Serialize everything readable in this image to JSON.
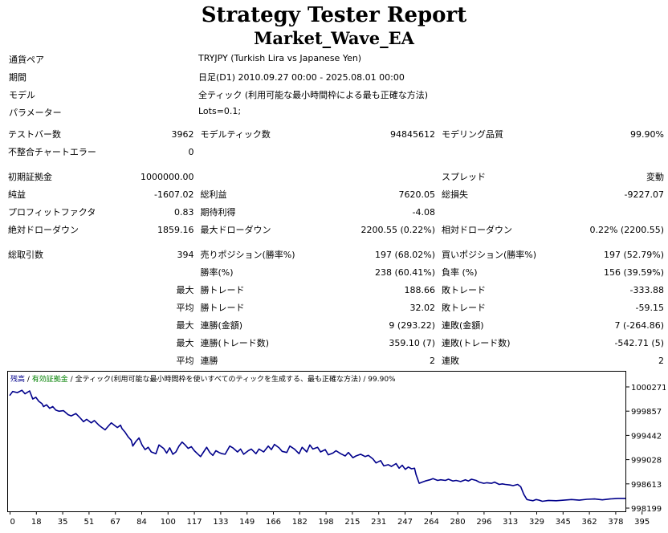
{
  "report": {
    "title": "Strategy Tester Report",
    "ea_name": "Market_Wave_EA"
  },
  "info": {
    "symbol_label": "通貨ペア",
    "symbol_value": "TRYJPY (Turkish Lira vs Japanese Yen)",
    "period_label": "期間",
    "period_value": "日足(D1) 2010.09.27 00:00 - 2025.08.01 00:00",
    "model_label": "モデル",
    "model_value": "全ティック (利用可能な最小時間枠による最も正確な方法)",
    "params_label": "パラメーター",
    "params_value": "Lots=0.1;"
  },
  "stats": {
    "bars_label": "テストバー数",
    "bars_value": "3962",
    "ticks_label": "モデルティック数",
    "ticks_value": "94845612",
    "quality_label": "モデリング品質",
    "quality_value": "99.90%",
    "mismatch_label": "不整合チャートエラー",
    "mismatch_value": "0",
    "deposit_label": "初期証拠金",
    "deposit_value": "1000000.00",
    "spread_label": "スプレッド",
    "spread_value": "変動",
    "net_label": "純益",
    "net_value": "-1607.02",
    "gross_profit_label": "総利益",
    "gross_profit_value": "7620.05",
    "gross_loss_label": "総損失",
    "gross_loss_value": "-9227.07",
    "pf_label": "プロフィットファクタ",
    "pf_value": "0.83",
    "payoff_label": "期待利得",
    "payoff_value": "-4.08",
    "abs_dd_label": "絶対ドローダウン",
    "abs_dd_value": "1859.16",
    "max_dd_label": "最大ドローダウン",
    "max_dd_value": "2200.55 (0.22%)",
    "rel_dd_label": "相対ドローダウン",
    "rel_dd_value": "0.22% (2200.55)",
    "trades_label": "総取引数",
    "trades_value": "394",
    "short_label": "売りポジション(勝率%)",
    "short_value": "197 (68.02%)",
    "long_label": "買いポジション(勝率%)",
    "long_value": "197 (52.79%)",
    "win_pct_label": "勝率(%)",
    "win_pct_value": "238 (60.41%)",
    "loss_pct_label": "負率 (%)",
    "loss_pct_value": "156 (39.59%)",
    "largest_prefix": "最大",
    "largest_win_label": "勝トレード",
    "largest_win_value": "188.66",
    "largest_loss_label": "敗トレード",
    "largest_loss_value": "-333.88",
    "avg_prefix": "平均",
    "avg_win_label": "勝トレード",
    "avg_win_value": "32.02",
    "avg_loss_label": "敗トレード",
    "avg_loss_value": "-59.15",
    "max_prefix1": "最大",
    "max_cons_wins_label": "連勝(金額)",
    "max_cons_wins_value": "9 (293.22)",
    "max_cons_losses_label": "連敗(金額)",
    "max_cons_losses_value": "7 (-264.86)",
    "max_prefix2": "最大",
    "max_cons_profit_label": "連勝(トレード数)",
    "max_cons_profit_value": "359.10 (7)",
    "max_cons_loss_label": "連敗(トレード数)",
    "max_cons_loss_value": "-542.71 (5)",
    "avg_prefix2": "平均",
    "avg_cons_wins_label": "連勝",
    "avg_cons_wins_value": "2",
    "avg_cons_losses_label": "連敗",
    "avg_cons_losses_value": "2"
  },
  "chart_data": {
    "type": "line",
    "legend": {
      "balance": "残高",
      "sep1": " / ",
      "equity": "有効証拠金",
      "sep2": " / ",
      "model": "全ティック(利用可能な最小時間枠を使いすべてのティックを生成する、最も正確な方法)",
      "sep3": " / ",
      "quality": "99.90%"
    },
    "x_ticks": [
      "0",
      "18",
      "35",
      "51",
      "67",
      "84",
      "100",
      "117",
      "133",
      "149",
      "166",
      "182",
      "198",
      "215",
      "231",
      "247",
      "264",
      "280",
      "296",
      "313",
      "329",
      "345",
      "362",
      "378",
      "395"
    ],
    "y_ticks": [
      "1000271",
      "999857",
      "999442",
      "999028",
      "998613",
      "998199"
    ],
    "ylim": [
      998199,
      1000271
    ],
    "xlim": [
      0,
      400
    ],
    "colors": {
      "balance": "#00008b",
      "equity": "#008000",
      "axis": "#000000"
    },
    "series": [
      {
        "x": [
          0,
          2,
          5,
          8,
          10,
          13,
          15,
          17,
          19,
          21,
          22,
          24,
          26,
          28,
          30,
          32,
          35,
          38,
          40,
          43,
          46,
          48,
          50,
          53,
          55,
          58,
          60,
          62,
          64,
          66,
          68,
          70,
          72,
          73,
          75,
          77,
          79,
          80,
          82,
          84,
          86,
          88,
          90,
          92,
          95,
          97,
          100,
          102,
          104,
          106,
          108,
          110,
          112,
          114,
          116,
          118,
          120,
          122,
          124,
          126,
          128,
          130,
          132,
          134,
          136,
          138,
          140,
          143,
          145,
          148,
          150,
          152,
          155,
          157,
          160,
          162,
          165,
          168,
          170,
          172,
          175,
          177,
          180,
          182,
          185,
          188,
          190,
          193,
          195,
          197,
          200,
          202,
          205,
          207,
          210,
          212,
          215,
          218,
          220,
          223,
          225,
          228,
          231,
          233,
          236,
          238,
          241,
          243,
          246,
          248,
          251,
          253,
          255,
          257,
          259,
          261,
          263,
          264,
          266,
          268,
          270,
          273,
          275,
          278,
          280,
          283,
          285,
          288,
          290,
          293,
          296,
          298,
          300,
          303,
          305,
          308,
          310,
          313,
          315,
          318,
          320,
          322,
          325,
          327,
          330,
          332,
          334,
          336,
          338,
          340,
          342,
          344,
          346,
          350,
          355,
          360,
          365,
          370,
          375,
          380,
          385,
          390,
          395,
          400
        ],
        "y": [
          1000150,
          1000220,
          1000200,
          1000240,
          1000180,
          1000230,
          1000090,
          1000120,
          1000050,
          1000010,
          999960,
          999990,
          999930,
          999960,
          999900,
          999880,
          999890,
          999820,
          999800,
          999840,
          999760,
          999700,
          999740,
          999680,
          999720,
          999640,
          999600,
          999560,
          999620,
          999680,
          999640,
          999600,
          999640,
          999580,
          999520,
          999440,
          999380,
          999280,
          999360,
          999420,
          999300,
          999220,
          999260,
          999180,
          999150,
          999300,
          999240,
          999160,
          999250,
          999140,
          999180,
          999280,
          999350,
          999300,
          999240,
          999270,
          999200,
          999150,
          999100,
          999180,
          999260,
          999170,
          999120,
          999200,
          999170,
          999150,
          999140,
          999280,
          999250,
          999180,
          999230,
          999140,
          999200,
          999230,
          999150,
          999230,
          999180,
          999280,
          999220,
          999310,
          999250,
          999190,
          999170,
          999280,
          999230,
          999150,
          999260,
          999180,
          999300,
          999230,
          999260,
          999180,
          999220,
          999130,
          999160,
          999200,
          999150,
          999110,
          999170,
          999080,
          999110,
          999140,
          999100,
          999120,
          999060,
          998990,
          999030,
          998940,
          998960,
          998930,
          998980,
          998900,
          998950,
          998880,
          998920,
          998890,
          998900,
          998790,
          998640,
          998660,
          998680,
          998700,
          998720,
          998690,
          998700,
          998690,
          998710,
          998680,
          998690,
          998670,
          998700,
          998680,
          998710,
          998690,
          998660,
          998640,
          998650,
          998640,
          998660,
          998620,
          998630,
          998620,
          998610,
          998600,
          998620,
          998580,
          998450,
          998360,
          998350,
          998340,
          998360,
          998350,
          998330,
          998345,
          998340,
          998350,
          998360,
          998350,
          998365,
          998370,
          998355,
          998370,
          998380,
          998380
        ]
      }
    ]
  }
}
